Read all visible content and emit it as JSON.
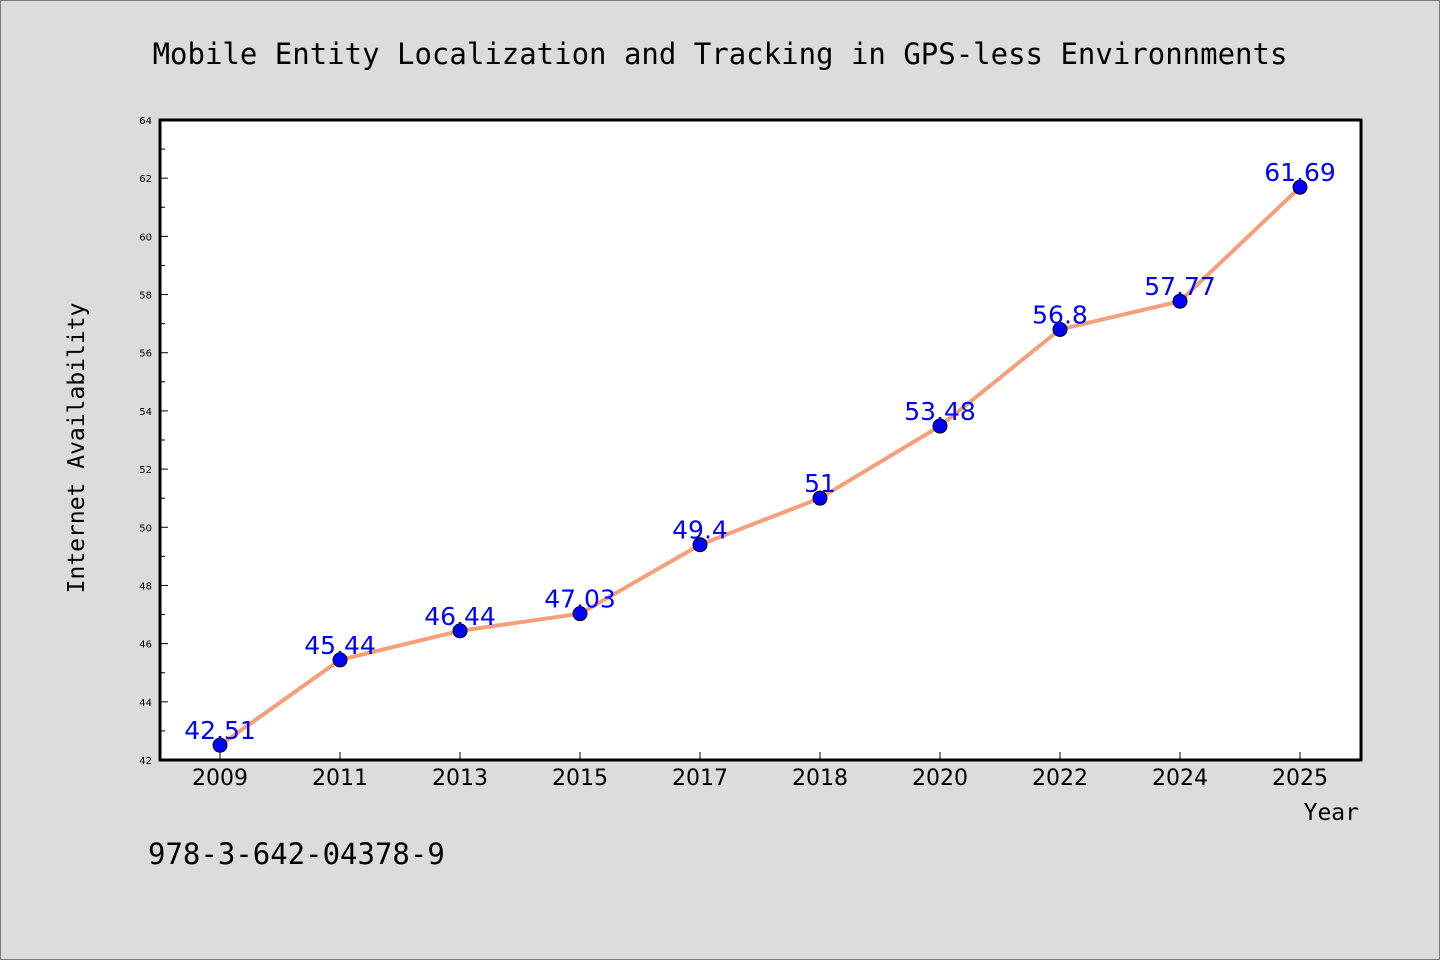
{
  "chart_data": {
    "type": "line",
    "title": "Mobile Entity Localization and Tracking in GPS-less Environnments",
    "xlabel": "Year",
    "ylabel": "Internet Availability",
    "categories": [
      "2009",
      "2011",
      "2013",
      "2015",
      "2017",
      "2018",
      "2020",
      "2022",
      "2024",
      "2025"
    ],
    "series": [
      {
        "values": [
          42.51,
          45.44,
          46.44,
          47.03,
          49.4,
          51,
          53.48,
          56.8,
          57.77,
          61.69
        ],
        "labels": [
          "42.51",
          "45.44",
          "46.44",
          "47.03",
          "49.4",
          "51",
          "53.48",
          "56.8",
          "57.77",
          "61.69"
        ]
      }
    ],
    "ylim": [
      42,
      64
    ],
    "yticks": [
      "42",
      "44",
      "46",
      "48",
      "50",
      "52",
      "54",
      "56",
      "58",
      "60",
      "62",
      "64"
    ],
    "grid": false,
    "legend": "none",
    "colors": {
      "line": "#f5a07a",
      "marker": "#0000ff",
      "data_label": "#0000ff",
      "background": "#dcdcdc",
      "plot_area": "#ffffff"
    }
  },
  "footer": {
    "isbn": "978-3-642-04378-9"
  }
}
